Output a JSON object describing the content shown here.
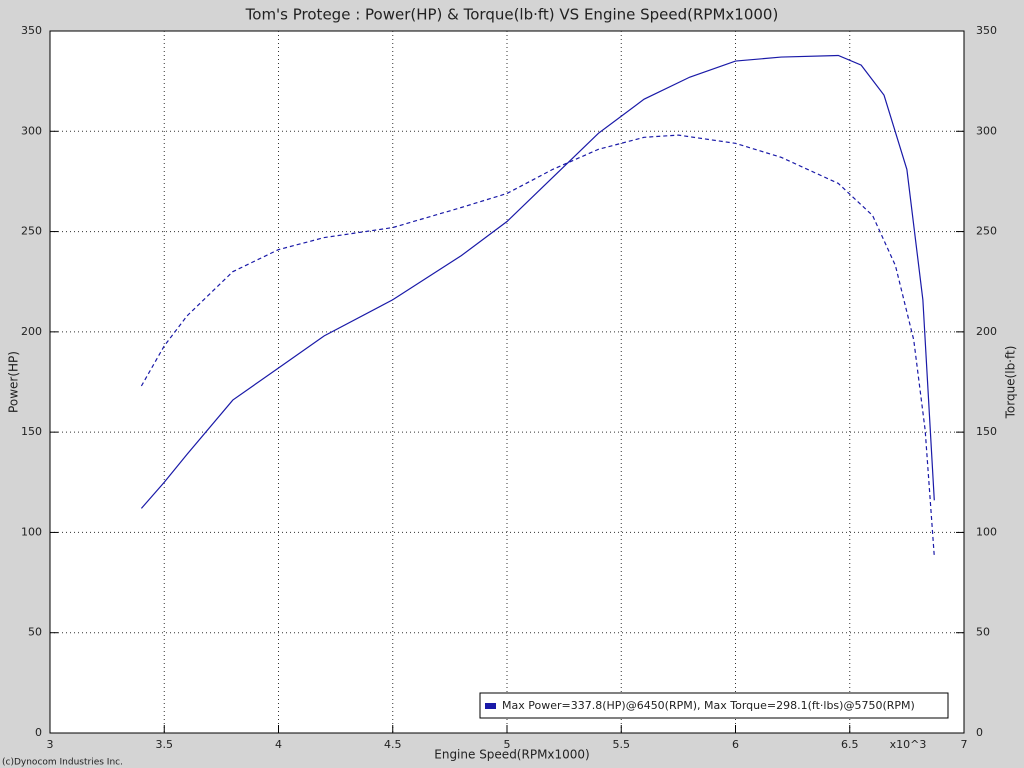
{
  "chart_data": {
    "type": "line",
    "title": "Tom's Protege : Power(HP) & Torque(lb·ft) VS Engine Speed(RPMx1000)",
    "x_label": "Engine Speed(RPMx1000)",
    "y_label": "Power(HP)",
    "y2_label": "Torque(lb·ft)",
    "x_multiplier": "x10^3",
    "copyright": "(c)Dynocom Industries Inc.",
    "annotation": "Max Power=337.8(HP)@6450(RPM), Max Torque=298.1(ft·lbs)@5750(RPM)",
    "xlim": [
      3,
      7
    ],
    "xticks": [
      3,
      3.5,
      4,
      4.5,
      5,
      5.5,
      6,
      6.5,
      7
    ],
    "ylim": [
      0,
      350
    ],
    "yticks": [
      0,
      50,
      100,
      150,
      200,
      250,
      300,
      350
    ],
    "y2lim": [
      0,
      350
    ],
    "y2ticks": [
      0,
      50,
      100,
      150,
      200,
      250,
      300,
      350
    ],
    "grid": true,
    "series": [
      {
        "color": "#1a1aa8",
        "dash": false,
        "x": [
          3.4,
          3.5,
          3.6,
          3.8,
          4.0,
          4.2,
          4.5,
          4.8,
          5.0,
          5.2,
          5.4,
          5.6,
          5.8,
          6.0,
          6.2,
          6.45,
          6.55,
          6.65,
          6.75,
          6.82,
          6.87
        ],
        "values": [
          112,
          125,
          139,
          166,
          182,
          198,
          216,
          238,
          255,
          277,
          299,
          316,
          327,
          335,
          337,
          337.8,
          333,
          318,
          281,
          216,
          116
        ]
      },
      {
        "color": "#1a1aa8",
        "dash": true,
        "axis": "y2",
        "x": [
          3.4,
          3.5,
          3.6,
          3.8,
          4.0,
          4.2,
          4.5,
          4.8,
          5.0,
          5.2,
          5.4,
          5.6,
          5.75,
          6.0,
          6.2,
          6.45,
          6.6,
          6.7,
          6.78,
          6.83,
          6.87
        ],
        "values": [
          173,
          193,
          208,
          230,
          241,
          247,
          252,
          262,
          269,
          281,
          291,
          297,
          298.1,
          294,
          287,
          274,
          258,
          233,
          196,
          151,
          88
        ]
      }
    ]
  }
}
